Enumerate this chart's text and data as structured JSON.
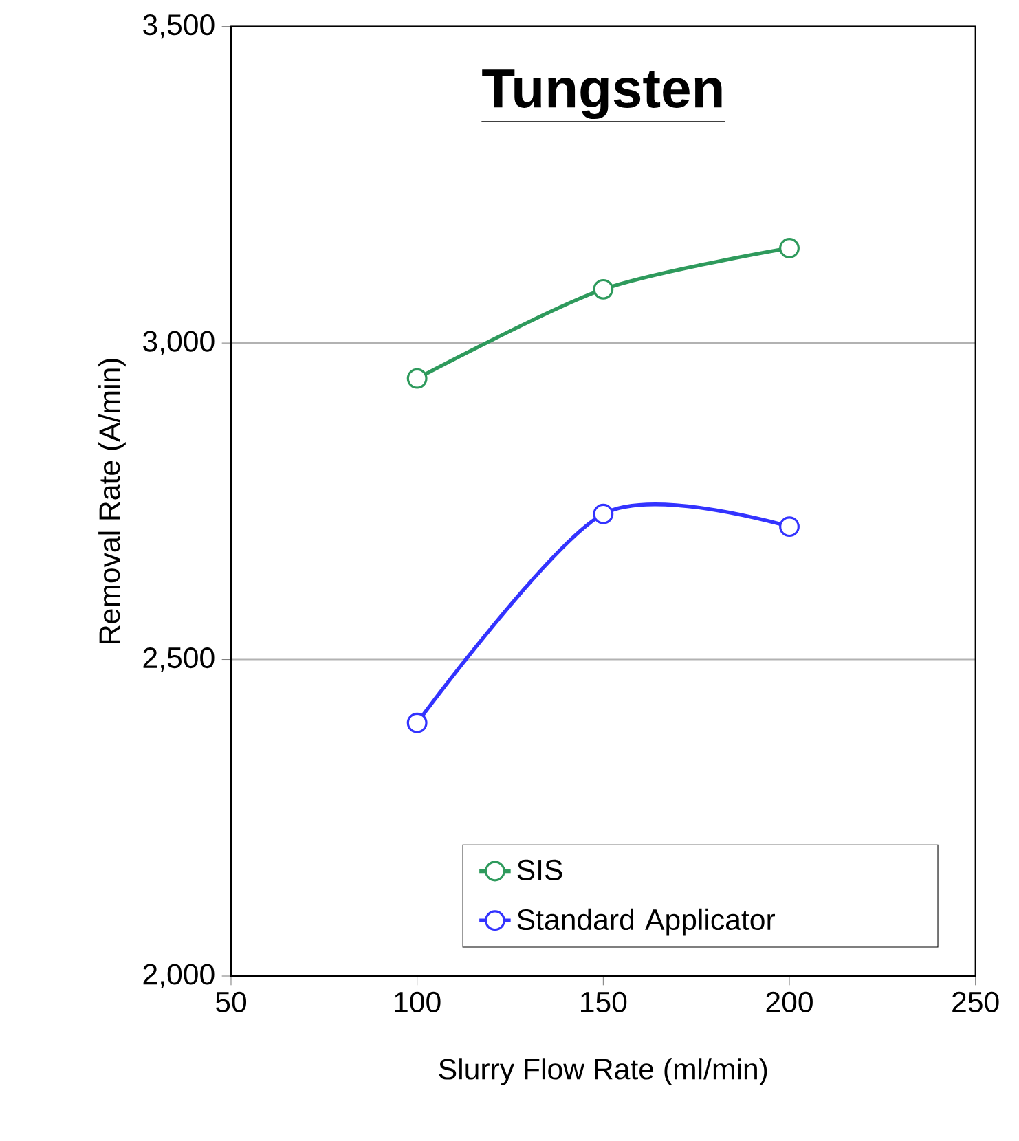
{
  "chart_data": {
    "type": "line",
    "title": "Tungsten",
    "xlabel": "Slurry Flow Rate (ml/min)",
    "ylabel": "Removal Rate (A/min)",
    "x": [
      100,
      150,
      200
    ],
    "series": [
      {
        "name": "SIS",
        "color": "#2e9a5c",
        "values": [
          2944,
          3085,
          3150
        ]
      },
      {
        "name": "Standard Applicator",
        "color": "#3333ff",
        "values": [
          2400,
          2730,
          2710
        ]
      }
    ],
    "xlim": [
      50,
      250
    ],
    "xticks": [
      50,
      100,
      150,
      200,
      250
    ],
    "ylim": [
      2000,
      3500
    ],
    "yticks": [
      {
        "value": 2000,
        "label": "2,000"
      },
      {
        "value": 2500,
        "label": "2,500"
      },
      {
        "value": 3000,
        "label": "3,000"
      },
      {
        "value": 3500,
        "label": "3,500"
      }
    ],
    "grid": "y",
    "legend": "bottom right",
    "marker": "circle",
    "line_style": "solid"
  }
}
